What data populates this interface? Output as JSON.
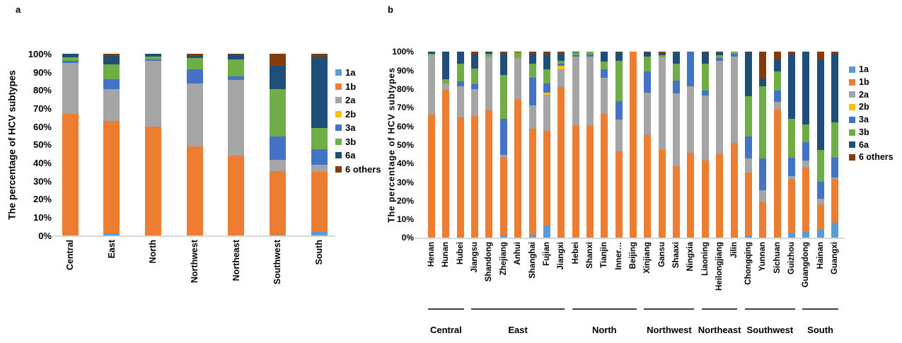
{
  "panel_a": {
    "label": "a"
  },
  "panel_b": {
    "label": "b"
  },
  "legend": {
    "items": [
      {
        "label": "1a",
        "color": "#5B9BD5"
      },
      {
        "label": "1b",
        "color": "#ED7D31"
      },
      {
        "label": "2a",
        "color": "#A5A5A5"
      },
      {
        "label": "2b",
        "color": "#FFC000"
      },
      {
        "label": "3a",
        "color": "#4472C4"
      },
      {
        "label": "3b",
        "color": "#70AD47"
      },
      {
        "label": "6a",
        "color": "#1F4E79"
      },
      {
        "label": "6 others",
        "color": "#843C0C"
      }
    ]
  },
  "chart_data": [
    {
      "id": "a",
      "type": "bar",
      "stacked": true,
      "title": "",
      "xlabel": "",
      "ylabel": "The percentage of HCV subtypes",
      "ylim": [
        0,
        100
      ],
      "grid": false,
      "legend_position": "right",
      "y_tick_labels": [
        "0%",
        "10%",
        "20%",
        "30%",
        "40%",
        "50%",
        "60%",
        "70%",
        "80%",
        "90%",
        "100%"
      ],
      "categories": [
        "Central",
        "East",
        "North",
        "Northwest",
        "Northeast",
        "Southwest",
        "South"
      ],
      "series": [
        {
          "name": "1a",
          "values": [
            0,
            1,
            0,
            0,
            0,
            0.5,
            2
          ]
        },
        {
          "name": "1b",
          "values": [
            67,
            62,
            60,
            49,
            44,
            35,
            33
          ]
        },
        {
          "name": "2a",
          "values": [
            28,
            17.5,
            36,
            34.5,
            41.5,
            6,
            4
          ]
        },
        {
          "name": "2b",
          "values": [
            0,
            0,
            0,
            0,
            0,
            0,
            0
          ]
        },
        {
          "name": "3a",
          "values": [
            1,
            5.5,
            1,
            8,
            2,
            13,
            8.5
          ]
        },
        {
          "name": "3b",
          "values": [
            2,
            8,
            1.5,
            6,
            9.5,
            26,
            11.5
          ]
        },
        {
          "name": "6a",
          "values": [
            2,
            5,
            1.5,
            1.5,
            2.5,
            13,
            39.5
          ]
        },
        {
          "name": "6 others",
          "values": [
            0,
            1,
            0,
            1,
            0.5,
            6.5,
            1.5
          ]
        }
      ]
    },
    {
      "id": "b",
      "type": "bar",
      "stacked": true,
      "title": "",
      "xlabel": "",
      "ylabel": "The percentage of HCV subtypes",
      "ylim": [
        0,
        100
      ],
      "grid": false,
      "legend_position": "right",
      "y_tick_labels": [
        "0%",
        "10%",
        "20%",
        "30%",
        "40%",
        "50%",
        "60%",
        "70%",
        "80%",
        "90%",
        "100%"
      ],
      "categories": [
        "Henan",
        "Hunan",
        "Hubei",
        "Jiangsu",
        "Shandong",
        "Zhejiang",
        "Anhui",
        "Shanghai",
        "Fujian",
        "Jiangxi",
        "Hebei",
        "Shanxi",
        "Tianjin",
        "Inner…",
        "Beijing",
        "Xinjiang",
        "Gansu",
        "Shaaxi",
        "Ningxia",
        "Liaoning",
        "Heilongjiang",
        "Jilin",
        "Chongqing",
        "Yunnan",
        "Sichuan",
        "Guizhou",
        "Guangdong",
        "Hainan",
        "Guangxi"
      ],
      "series": [
        {
          "name": "1a",
          "values": [
            0,
            0,
            0,
            0,
            0,
            1,
            0,
            1.5,
            6.5,
            0,
            0,
            0,
            0,
            0,
            0,
            0,
            0,
            0.5,
            0,
            0,
            0,
            0,
            1,
            0.5,
            0,
            2.5,
            3,
            4,
            8
          ]
        },
        {
          "name": "1b",
          "values": [
            66,
            79.5,
            64.5,
            65.5,
            68.5,
            42.5,
            74.5,
            57,
            51,
            81,
            60,
            60,
            66.5,
            46.5,
            100,
            55,
            47,
            38,
            45.5,
            41.5,
            45,
            51,
            34,
            18.5,
            69,
            29,
            34.5,
            14,
            23.5
          ]
        },
        {
          "name": "2a",
          "values": [
            32,
            3.5,
            17,
            14.5,
            29,
            1,
            22,
            12.5,
            19.5,
            9.5,
            37.5,
            37.5,
            19.5,
            17,
            0,
            23,
            50,
            39,
            36,
            35,
            50,
            46.5,
            7.5,
            6.5,
            4,
            1.5,
            4,
            3,
            1
          ]
        },
        {
          "name": "2b",
          "values": [
            0,
            0,
            0,
            0,
            0,
            0,
            0,
            0,
            1,
            2,
            0,
            0,
            0,
            0,
            0,
            0,
            0,
            0,
            0,
            0,
            0,
            0,
            0,
            0,
            0,
            0,
            0,
            0,
            0
          ]
        },
        {
          "name": "3a",
          "values": [
            0,
            0,
            2.5,
            2.5,
            0,
            19.5,
            0,
            15,
            5,
            1,
            0.5,
            1,
            4.5,
            10,
            0,
            11.5,
            0,
            7,
            18.5,
            2.5,
            1.5,
            1.25,
            12,
            17,
            6,
            10,
            10,
            9,
            10.5
          ]
        },
        {
          "name": "3b",
          "values": [
            1,
            2,
            9.5,
            8.5,
            1.5,
            23.5,
            3,
            7.5,
            7.5,
            1.5,
            1.5,
            1.5,
            4,
            21.5,
            0,
            8,
            1,
            9,
            0,
            14.5,
            1.5,
            1.25,
            21.5,
            39,
            10.5,
            21,
            9.5,
            17,
            19
          ]
        },
        {
          "name": "6a",
          "values": [
            1,
            15,
            6.5,
            7.5,
            1,
            11.5,
            0,
            5.5,
            8,
            4,
            0.5,
            0,
            5.5,
            4.5,
            0,
            2,
            1,
            6,
            0,
            6,
            1.5,
            0,
            23.5,
            4,
            6.5,
            34.5,
            39,
            48.5,
            37
          ]
        },
        {
          "name": "6 others",
          "values": [
            0,
            0,
            0,
            1.5,
            0,
            1,
            0.5,
            1,
            1.5,
            1,
            0,
            0,
            0,
            0.5,
            0,
            0.5,
            1,
            0.5,
            0,
            0.5,
            0.5,
            0,
            0.5,
            14.5,
            4,
            1.5,
            0,
            4.5,
            1
          ]
        }
      ],
      "groups": [
        {
          "label": "Central",
          "span": [
            0,
            2
          ]
        },
        {
          "label": "East",
          "span": [
            3,
            9
          ]
        },
        {
          "label": "North",
          "span": [
            10,
            14
          ]
        },
        {
          "label": "Northwest",
          "span": [
            15,
            18
          ]
        },
        {
          "label": "Northeast",
          "span": [
            19,
            21
          ]
        },
        {
          "label": "Southwest",
          "span": [
            22,
            25
          ]
        },
        {
          "label": "South",
          "span": [
            26,
            28
          ]
        }
      ]
    }
  ]
}
